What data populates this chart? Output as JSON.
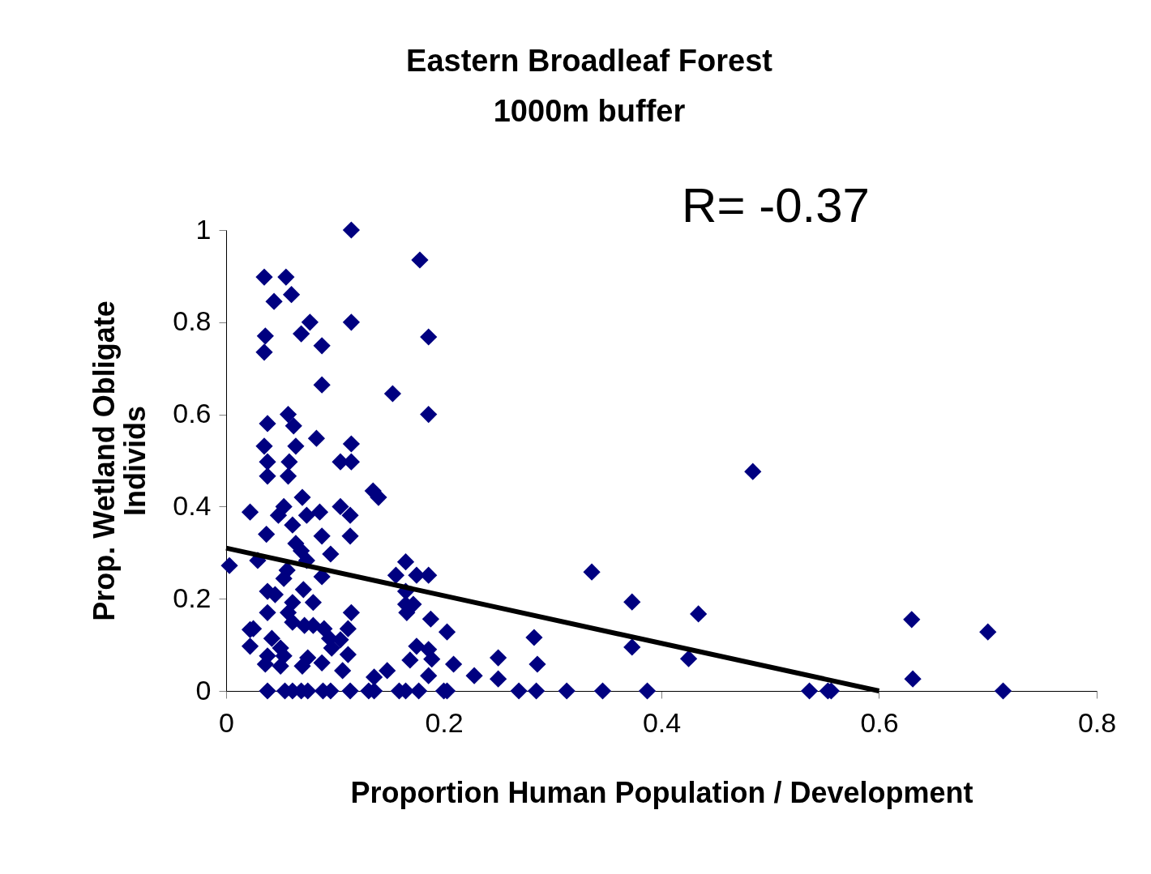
{
  "chart_data": {
    "type": "scatter",
    "title": "Eastern Broadleaf Forest\n1000m buffer",
    "xlabel": "Proportion Human Population / Development",
    "ylabel": "Prop. Wetland Obligate\nIndivids",
    "annotations": [
      "R= -0.37"
    ],
    "xlim": [
      0,
      0.8
    ],
    "xticks": [
      0,
      0.2,
      0.4,
      0.6,
      0.8
    ],
    "ylim": [
      0,
      1
    ],
    "yticks": [
      0,
      0.2,
      0.4,
      0.6,
      0.8,
      1
    ],
    "grid": false,
    "legend": false,
    "marker": "diamond",
    "series": [
      {
        "color": "#000080",
        "x": [
          0.115,
          0.178,
          0.035,
          0.055,
          0.06,
          0.044,
          0.077,
          0.115,
          0.069,
          0.036,
          0.186,
          0.035,
          0.088,
          0.088,
          0.153,
          0.186,
          0.057,
          0.038,
          0.062,
          0.083,
          0.115,
          0.035,
          0.064,
          0.038,
          0.058,
          0.105,
          0.115,
          0.484,
          0.038,
          0.057,
          0.135,
          0.14,
          0.07,
          0.053,
          0.105,
          0.022,
          0.048,
          0.074,
          0.086,
          0.114,
          0.061,
          0.037,
          0.088,
          0.114,
          0.064,
          0.069,
          0.096,
          0.029,
          0.074,
          0.165,
          0.003,
          0.056,
          0.156,
          0.175,
          0.186,
          0.336,
          0.088,
          0.053,
          0.038,
          0.071,
          0.045,
          0.165,
          0.08,
          0.373,
          0.061,
          0.165,
          0.172,
          0.057,
          0.038,
          0.115,
          0.166,
          0.434,
          0.188,
          0.63,
          0.061,
          0.072,
          0.08,
          0.025,
          0.09,
          0.112,
          0.203,
          0.7,
          0.022,
          0.042,
          0.095,
          0.105,
          0.283,
          0.022,
          0.05,
          0.175,
          0.373,
          0.097,
          0.186,
          0.053,
          0.038,
          0.075,
          0.112,
          0.25,
          0.425,
          0.169,
          0.189,
          0.036,
          0.05,
          0.07,
          0.088,
          0.209,
          0.286,
          0.107,
          0.148,
          0.228,
          0.186,
          0.136,
          0.25,
          0.631,
          0.038,
          0.054,
          0.061,
          0.069,
          0.075,
          0.089,
          0.096,
          0.114,
          0.131,
          0.136,
          0.159,
          0.165,
          0.177,
          0.2,
          0.203,
          0.269,
          0.285,
          0.313,
          0.346,
          0.387,
          0.536,
          0.553,
          0.556,
          0.714
        ],
        "values": [
          1.0,
          0.935,
          0.898,
          0.898,
          0.86,
          0.845,
          0.8,
          0.8,
          0.775,
          0.77,
          0.768,
          0.735,
          0.749,
          0.664,
          0.645,
          0.6,
          0.6,
          0.58,
          0.575,
          0.548,
          0.536,
          0.531,
          0.531,
          0.497,
          0.497,
          0.497,
          0.497,
          0.476,
          0.466,
          0.466,
          0.434,
          0.42,
          0.42,
          0.4,
          0.4,
          0.388,
          0.381,
          0.381,
          0.388,
          0.381,
          0.36,
          0.34,
          0.336,
          0.336,
          0.32,
          0.304,
          0.297,
          0.283,
          0.283,
          0.28,
          0.272,
          0.262,
          0.251,
          0.251,
          0.251,
          0.258,
          0.248,
          0.244,
          0.216,
          0.22,
          0.209,
          0.216,
          0.192,
          0.193,
          0.192,
          0.188,
          0.188,
          0.17,
          0.17,
          0.17,
          0.17,
          0.167,
          0.156,
          0.155,
          0.149,
          0.142,
          0.142,
          0.135,
          0.135,
          0.135,
          0.128,
          0.128,
          0.133,
          0.114,
          0.114,
          0.111,
          0.116,
          0.097,
          0.093,
          0.097,
          0.095,
          0.093,
          0.09,
          0.076,
          0.076,
          0.072,
          0.079,
          0.072,
          0.07,
          0.067,
          0.069,
          0.058,
          0.054,
          0.054,
          0.061,
          0.058,
          0.058,
          0.044,
          0.044,
          0.033,
          0.033,
          0.03,
          0.026,
          0.026,
          0,
          0,
          0,
          0,
          0,
          0,
          0,
          0,
          0,
          0,
          0,
          0,
          0,
          0,
          0,
          0,
          0,
          0,
          0,
          0,
          0,
          0,
          0,
          0
        ]
      },
      {
        "type": "line",
        "marker": "none",
        "color": "#000000",
        "x": [
          0,
          0.6
        ],
        "values": [
          0.31,
          0
        ]
      }
    ]
  }
}
